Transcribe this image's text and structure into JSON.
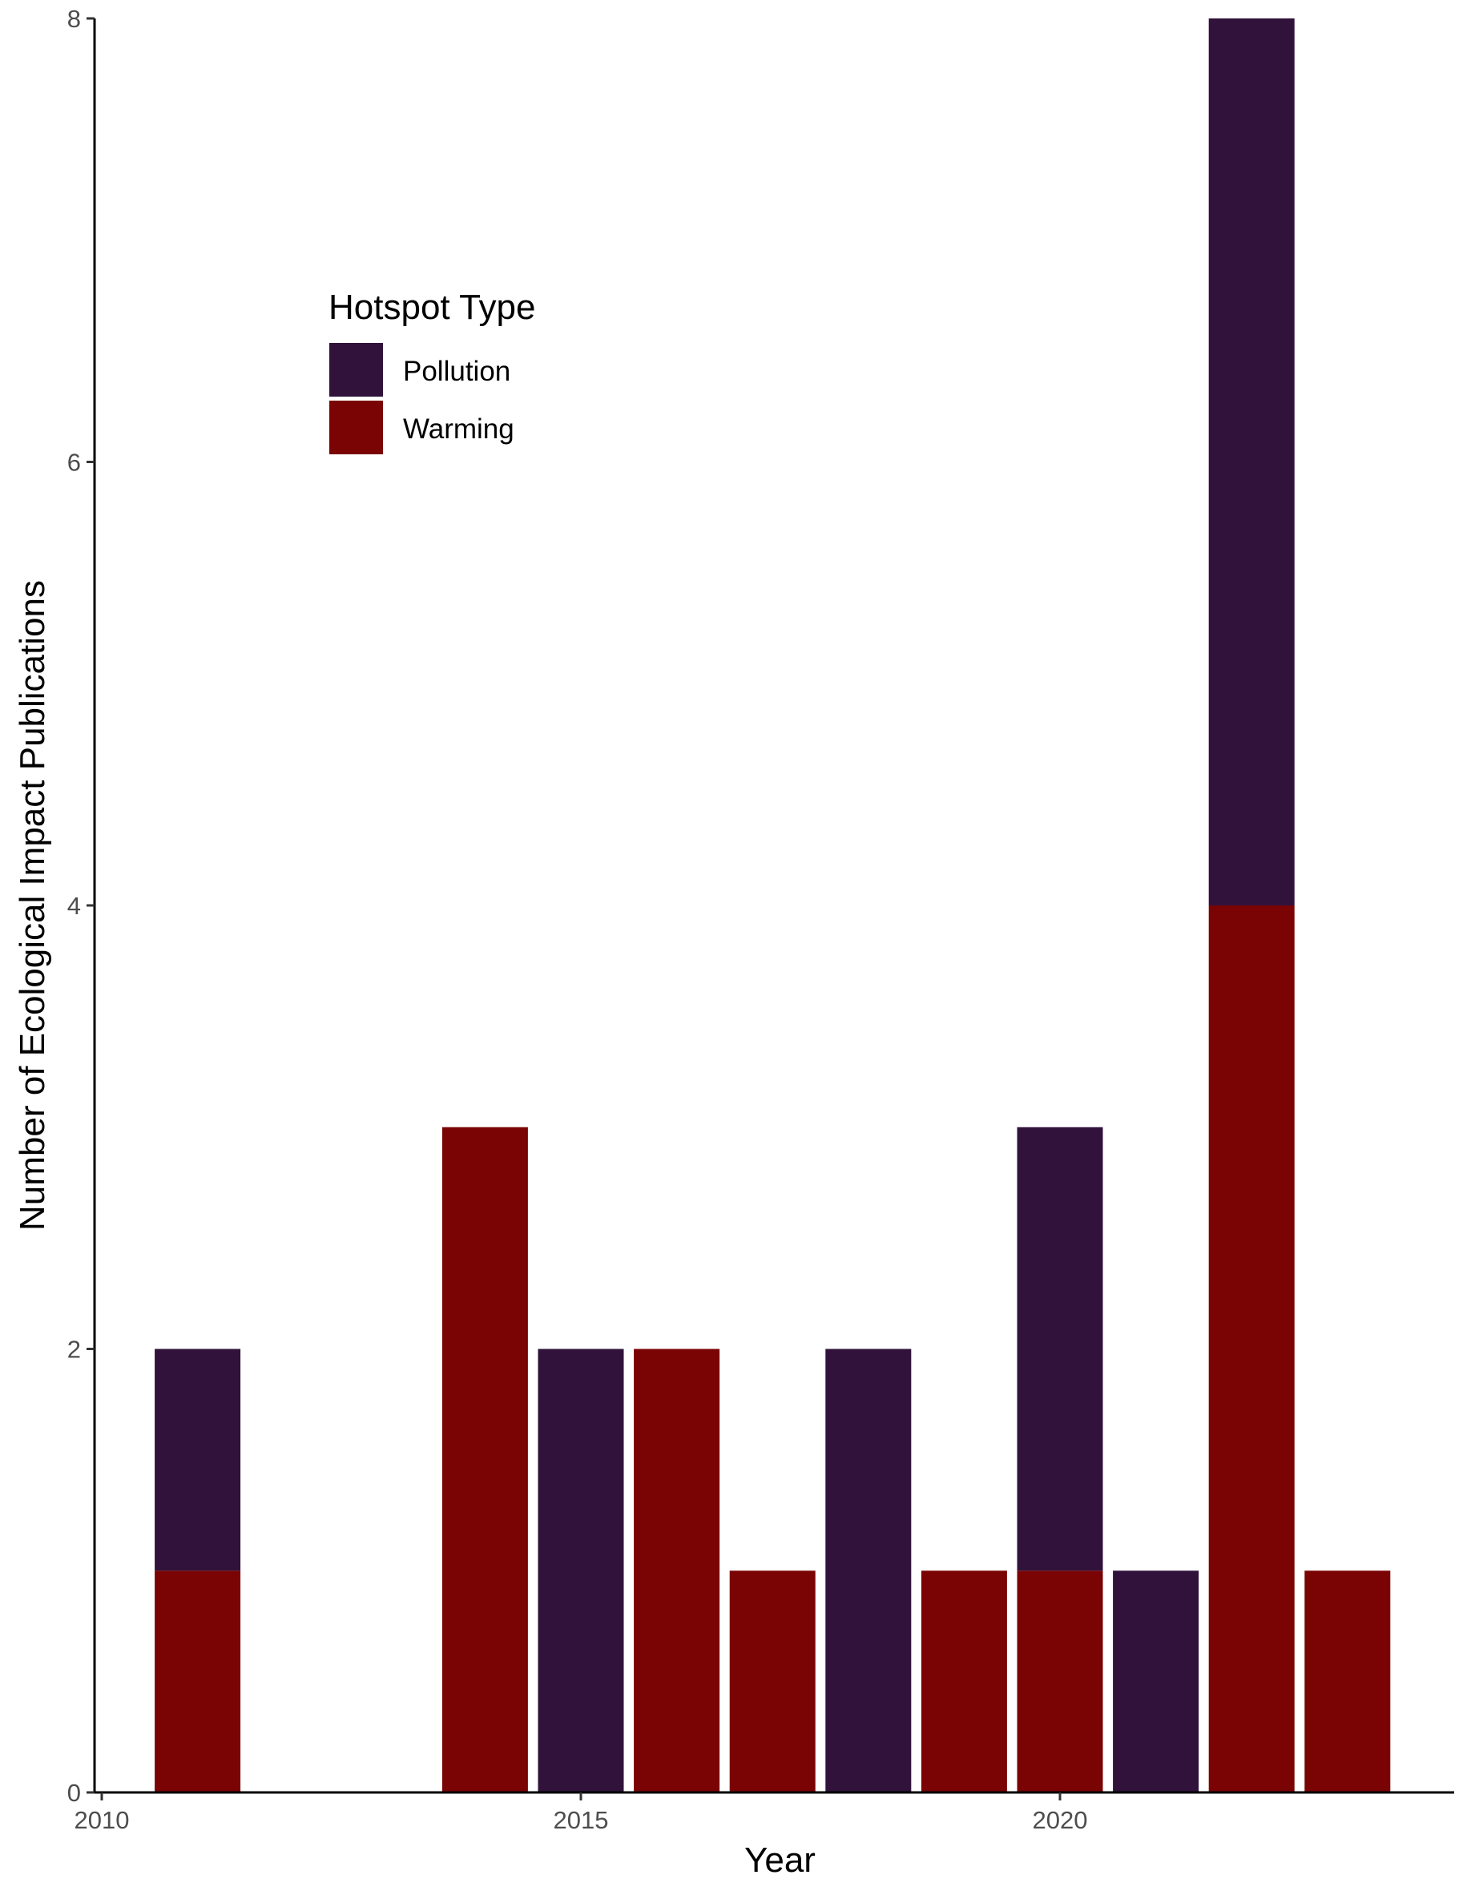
{
  "chart_data": {
    "type": "bar",
    "stacked": true,
    "xlabel": "Year",
    "ylabel": "Number of Ecological Impact Publications",
    "xlim": [
      2010,
      2024
    ],
    "ylim": [
      0,
      8
    ],
    "x_ticks": [
      2010,
      2015,
      2020
    ],
    "y_ticks": [
      0,
      2,
      4,
      6,
      8
    ],
    "grid": false,
    "legend": {
      "title": "Hotspot Type",
      "position": "top-left (inside plot)"
    },
    "categories": [
      2011,
      2014,
      2015,
      2016,
      2017,
      2018,
      2019,
      2020,
      2021,
      2022,
      2023
    ],
    "series": [
      {
        "name": "Warming",
        "color": "#7a0403",
        "values": [
          1,
          3,
          0,
          2,
          1,
          0,
          1,
          1,
          0,
          4,
          1
        ]
      },
      {
        "name": "Pollution",
        "color": "#30123b",
        "values": [
          1,
          0,
          2,
          0,
          0,
          2,
          0,
          2,
          1,
          4,
          0
        ]
      }
    ],
    "legend_order": [
      "Pollution",
      "Warming"
    ]
  }
}
